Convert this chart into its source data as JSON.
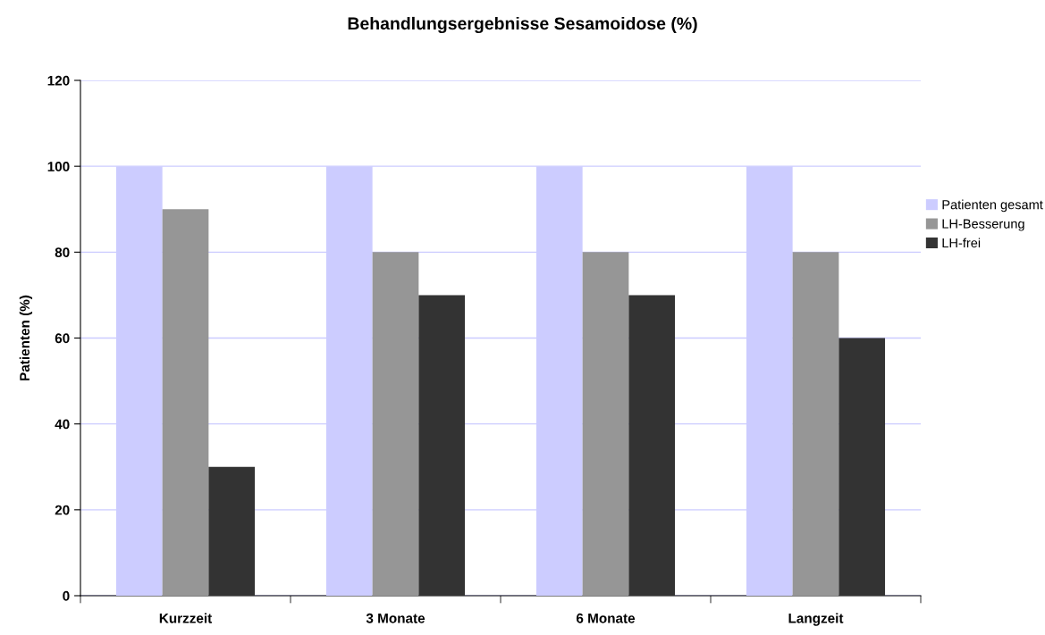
{
  "chart_data": {
    "type": "bar",
    "title": "Behandlungsergebnisse Sesamoidose (%)",
    "ylabel": "Patienten (%)",
    "categories": [
      "Kurzzeit",
      "3 Monate",
      "6 Monate",
      "Langzeit"
    ],
    "series": [
      {
        "name": "Patienten gesamt",
        "color": "#ccccff",
        "values": [
          100,
          100,
          100,
          100
        ]
      },
      {
        "name": "LH-Besserung",
        "color": "#969696",
        "values": [
          90,
          80,
          80,
          80
        ]
      },
      {
        "name": "LH-frei",
        "color": "#333333",
        "values": [
          30,
          70,
          70,
          60
        ]
      }
    ],
    "ylim": [
      0,
      120
    ],
    "yticks": [
      0,
      20,
      40,
      60,
      80,
      100,
      120
    ],
    "grid": "y",
    "legend": "right"
  }
}
